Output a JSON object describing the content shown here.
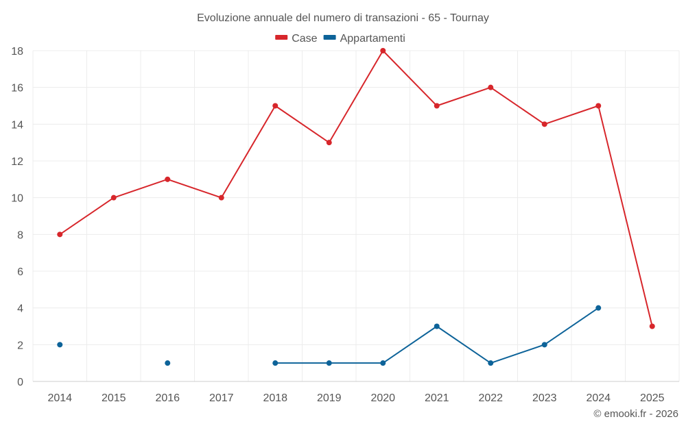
{
  "chart_data": {
    "type": "line",
    "title": "Evoluzione annuale del numero di transazioni - 65 - Tournay",
    "categories": [
      "2014",
      "2015",
      "2016",
      "2017",
      "2018",
      "2019",
      "2020",
      "2021",
      "2022",
      "2023",
      "2024",
      "2025"
    ],
    "ylim": [
      0,
      18
    ],
    "yticks": [
      0,
      2,
      4,
      6,
      8,
      10,
      12,
      14,
      16,
      18
    ],
    "grid": true,
    "legend_position": "top-center",
    "series": [
      {
        "name": "Case",
        "color": "#d7262b",
        "values": [
          8,
          10,
          11,
          10,
          15,
          13,
          18,
          15,
          16,
          14,
          15,
          3
        ]
      },
      {
        "name": "Appartamenti",
        "color": "#0d6399",
        "values": [
          2,
          null,
          1,
          null,
          1,
          1,
          1,
          3,
          1,
          2,
          4,
          null
        ]
      }
    ],
    "credit": "© emooki.fr - 2026"
  }
}
